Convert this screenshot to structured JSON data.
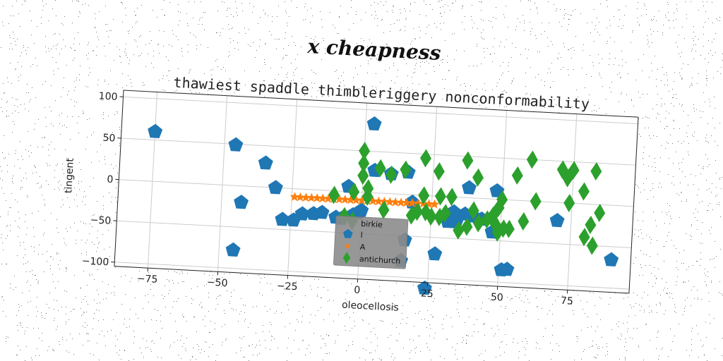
{
  "figure": {
    "title": "x cheapness"
  },
  "chart_data": {
    "type": "scatter",
    "subtitle": "thawiest spaddle thimbleriggery nonconformability",
    "xlabel": "oleocellosis",
    "ylabel": "tingent",
    "xlim": [
      -87,
      97
    ],
    "ylim": [
      -105,
      108
    ],
    "xticks": [
      -75,
      -50,
      -25,
      0,
      25,
      50,
      75
    ],
    "xtick_labels": [
      "−75",
      "−50",
      "−25",
      "0",
      "25",
      "50",
      "75"
    ],
    "yticks": [
      -100,
      -50,
      0,
      50,
      100
    ],
    "ytick_labels": [
      "−100",
      "−50",
      "0",
      "50",
      "100"
    ],
    "grid": true,
    "legend": {
      "title": "birkie",
      "placement": "bottom-center"
    },
    "series": [
      {
        "name": "l",
        "color": "#1f77b4",
        "marker": "pentagon",
        "points": [
          [
            -75,
            60
          ],
          [
            -46,
            49
          ],
          [
            -45,
            -78
          ],
          [
            -43,
            -20
          ],
          [
            -35,
            29
          ],
          [
            -31,
            0
          ],
          [
            -28,
            -38
          ],
          [
            -24,
            -38
          ],
          [
            -21,
            -30
          ],
          [
            -17,
            -29
          ],
          [
            -14,
            -27
          ],
          [
            -9,
            -32
          ],
          [
            -7,
            -33
          ],
          [
            -3,
            -28
          ],
          [
            -5,
            6
          ],
          [
            -1,
            -25
          ],
          [
            0,
            -22
          ],
          [
            3,
            83
          ],
          [
            4,
            27
          ],
          [
            10,
            24
          ],
          [
            16,
            27
          ],
          [
            16,
            -55
          ],
          [
            15,
            -80
          ],
          [
            18,
            -9
          ],
          [
            24,
            -112
          ],
          [
            27,
            -70
          ],
          [
            31,
            -30
          ],
          [
            33,
            -18
          ],
          [
            34,
            -30
          ],
          [
            37,
            -20
          ],
          [
            38,
            12
          ],
          [
            40,
            -22
          ],
          [
            43,
            -25
          ],
          [
            47,
            -40
          ],
          [
            48,
            10
          ],
          [
            51,
            -85
          ],
          [
            53,
            -84
          ],
          [
            70,
            -22
          ],
          [
            90,
            -66
          ]
        ]
      },
      {
        "name": "A",
        "color": "#ff7f0e",
        "marker": "star",
        "points": [
          [
            -24,
            -10
          ],
          [
            -22,
            -10
          ],
          [
            -20,
            -10
          ],
          [
            -18,
            -10
          ],
          [
            -16,
            -10
          ],
          [
            -14,
            -10
          ],
          [
            -12,
            -10
          ],
          [
            -10,
            -10
          ],
          [
            -8,
            -10
          ],
          [
            -6,
            -10
          ],
          [
            -4,
            -10
          ],
          [
            -2,
            -10
          ],
          [
            0,
            -10
          ],
          [
            2,
            -10
          ],
          [
            4,
            -10
          ],
          [
            6,
            -10
          ],
          [
            8,
            -10
          ],
          [
            10,
            -10
          ],
          [
            12,
            -10
          ],
          [
            14,
            -10
          ],
          [
            16,
            -10
          ],
          [
            18,
            -10
          ],
          [
            20,
            -10
          ],
          [
            22,
            -10
          ],
          [
            24,
            -10
          ],
          [
            26,
            -10
          ]
        ]
      },
      {
        "name": "antichurch",
        "color": "#2ca02c",
        "marker": "diamond",
        "points": [
          [
            -10,
            -5
          ],
          [
            -6,
            -30
          ],
          [
            -3,
            -35
          ],
          [
            -3,
            0
          ],
          [
            0,
            50
          ],
          [
            0,
            35
          ],
          [
            0,
            20
          ],
          [
            2,
            5
          ],
          [
            2,
            -5
          ],
          [
            6,
            30
          ],
          [
            8,
            -20
          ],
          [
            10,
            23
          ],
          [
            15,
            30
          ],
          [
            18,
            -25
          ],
          [
            20,
            -20
          ],
          [
            22,
            45
          ],
          [
            22,
            0
          ],
          [
            23,
            -20
          ],
          [
            25,
            -25
          ],
          [
            27,
            30
          ],
          [
            28,
            0
          ],
          [
            28,
            -25
          ],
          [
            30,
            -20
          ],
          [
            32,
            0
          ],
          [
            35,
            -40
          ],
          [
            37,
            45
          ],
          [
            38,
            -35
          ],
          [
            40,
            -15
          ],
          [
            41,
            25
          ],
          [
            42,
            -30
          ],
          [
            45,
            -25
          ],
          [
            47,
            -20
          ],
          [
            48,
            -30
          ],
          [
            49,
            -40
          ],
          [
            49,
            -10
          ],
          [
            50,
            0
          ],
          [
            51,
            -35
          ],
          [
            53,
            -35
          ],
          [
            55,
            30
          ],
          [
            58,
            -25
          ],
          [
            60,
            50
          ],
          [
            62,
            0
          ],
          [
            71,
            40
          ],
          [
            73,
            30
          ],
          [
            74,
            0
          ],
          [
            75,
            40
          ],
          [
            79,
            15
          ],
          [
            80,
            -40
          ],
          [
            82,
            -25
          ],
          [
            83,
            40
          ],
          [
            83,
            -50
          ],
          [
            85,
            -10
          ]
        ]
      }
    ]
  }
}
